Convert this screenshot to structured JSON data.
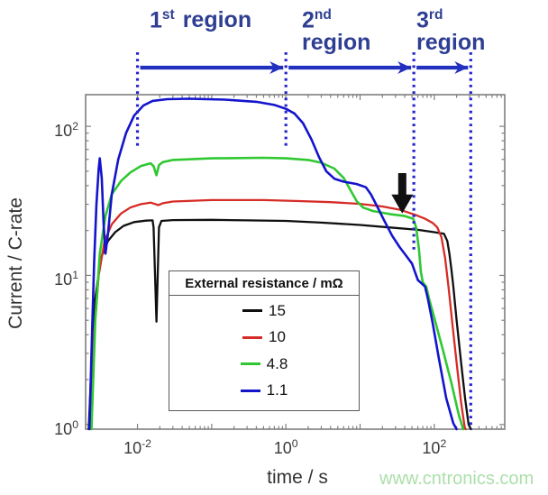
{
  "header": {
    "regions": [
      {
        "num": "1",
        "sup": "st",
        "word": "region"
      },
      {
        "num": "2",
        "sup": "nd",
        "word": "region"
      },
      {
        "num": "3",
        "sup": "rd",
        "word": "region"
      }
    ],
    "text_color": "#2e3e92",
    "arrow_color": "#2230c0"
  },
  "watermark": {
    "text": "www.cntronics.com",
    "color": "#abdfab"
  },
  "chart_data": {
    "type": "line",
    "x_scale": "log",
    "y_scale": "log",
    "title": "",
    "xlabel": "time / s",
    "ylabel": "Current / C-rate",
    "xlim": [
      0.002,
      890
    ],
    "ylim": [
      0.93,
      163
    ],
    "grid": false,
    "x_ticks": [
      {
        "base": "10",
        "exp": "-2",
        "value": 0.01
      },
      {
        "base": "10",
        "exp": "0",
        "value": 1
      },
      {
        "base": "10",
        "exp": "2",
        "value": 100
      }
    ],
    "y_ticks": [
      {
        "base": "10",
        "exp": "0",
        "value": 1
      },
      {
        "base": "10",
        "exp": "1",
        "value": 10
      },
      {
        "base": "10",
        "exp": "2",
        "value": 100
      }
    ],
    "legend": {
      "title": "External resistance / mΩ",
      "position": "inside lower-left",
      "entries": [
        {
          "label": "15",
          "color": "#0f0f0f"
        },
        {
          "label": "10",
          "color": "#d62b26"
        },
        {
          "label": "4.8",
          "color": "#2fc832"
        },
        {
          "label": "1.1",
          "color": "#1414cc"
        }
      ]
    },
    "regions": {
      "dotted_line_color": "#2525cd",
      "boundaries": [
        {
          "t": 0.01,
          "bottom_current": 74
        },
        {
          "t": 1.0,
          "bottom_current": 74
        },
        {
          "t": 53,
          "bottom_current": 14
        },
        {
          "t": 310,
          "bottom_current": 0.93
        }
      ]
    },
    "annotation_arrow": {
      "t": 37,
      "tip_current": 26,
      "color": "#111111"
    },
    "series": [
      {
        "name": "15",
        "color": "#0f0f0f",
        "width": 2.3,
        "points": [
          [
            0.0022,
            0.93
          ],
          [
            0.0024,
            2.5
          ],
          [
            0.0027,
            7
          ],
          [
            0.0032,
            13
          ],
          [
            0.004,
            17
          ],
          [
            0.005,
            19.5
          ],
          [
            0.0065,
            21.5
          ],
          [
            0.009,
            22.8
          ],
          [
            0.013,
            23.3
          ],
          [
            0.016,
            23.4
          ],
          [
            0.0165,
            21
          ],
          [
            0.018,
            4.9
          ],
          [
            0.0195,
            21
          ],
          [
            0.021,
            23.2
          ],
          [
            0.03,
            23.5
          ],
          [
            0.1,
            23.6
          ],
          [
            0.3,
            23.4
          ],
          [
            1,
            23.2
          ],
          [
            3,
            22.6
          ],
          [
            10,
            21.8
          ],
          [
            30,
            20.8
          ],
          [
            60,
            20.2
          ],
          [
            100,
            19.5
          ],
          [
            135,
            19
          ],
          [
            150,
            17
          ],
          [
            160,
            14
          ],
          [
            170,
            11
          ],
          [
            180,
            8.5
          ],
          [
            200,
            5
          ],
          [
            230,
            2.6
          ],
          [
            260,
            1.5
          ],
          [
            290,
            1.0
          ],
          [
            312,
            0.93
          ]
        ]
      },
      {
        "name": "10",
        "color": "#d62b26",
        "width": 2.3,
        "points": [
          [
            0.0023,
            0.93
          ],
          [
            0.0026,
            4
          ],
          [
            0.003,
            10
          ],
          [
            0.0036,
            17
          ],
          [
            0.0045,
            22
          ],
          [
            0.006,
            26
          ],
          [
            0.008,
            28.5
          ],
          [
            0.011,
            30
          ],
          [
            0.015,
            30.8
          ],
          [
            0.017,
            30.2
          ],
          [
            0.019,
            29.6
          ],
          [
            0.022,
            30.5
          ],
          [
            0.03,
            31.3
          ],
          [
            0.1,
            32
          ],
          [
            0.5,
            32
          ],
          [
            1.5,
            31.5
          ],
          [
            4,
            31
          ],
          [
            10,
            30.2
          ],
          [
            20,
            29
          ],
          [
            35,
            27.5
          ],
          [
            55,
            25.5
          ],
          [
            75,
            24
          ],
          [
            95,
            22.5
          ],
          [
            110,
            21
          ],
          [
            125,
            18
          ],
          [
            140,
            13
          ],
          [
            155,
            8.5
          ],
          [
            175,
            4.8
          ],
          [
            200,
            2.6
          ],
          [
            230,
            1.4
          ],
          [
            258,
            0.95
          ],
          [
            266,
            0.93
          ]
        ]
      },
      {
        "name": "4.8",
        "color": "#2fc832",
        "width": 2.6,
        "points": [
          [
            0.0024,
            0.93
          ],
          [
            0.0027,
            5
          ],
          [
            0.0031,
            14
          ],
          [
            0.0037,
            25
          ],
          [
            0.0045,
            35
          ],
          [
            0.006,
            43
          ],
          [
            0.008,
            49
          ],
          [
            0.011,
            54
          ],
          [
            0.015,
            56.5
          ],
          [
            0.0165,
            54
          ],
          [
            0.018,
            47
          ],
          [
            0.0195,
            55
          ],
          [
            0.022,
            57.5
          ],
          [
            0.03,
            59.5
          ],
          [
            0.1,
            61
          ],
          [
            0.5,
            61.5
          ],
          [
            1,
            61
          ],
          [
            2,
            59.5
          ],
          [
            3,
            57
          ],
          [
            4.5,
            52
          ],
          [
            6,
            45
          ],
          [
            7.5,
            37
          ],
          [
            9,
            31.5
          ],
          [
            11,
            28.5
          ],
          [
            15,
            27
          ],
          [
            25,
            25.8
          ],
          [
            40,
            25
          ],
          [
            52,
            24
          ],
          [
            57,
            21
          ],
          [
            62,
            15
          ],
          [
            66,
            10.5
          ],
          [
            70,
            9.0
          ],
          [
            78,
            8.4
          ],
          [
            85,
            7.0
          ],
          [
            100,
            5.2
          ],
          [
            130,
            3.2
          ],
          [
            170,
            1.9
          ],
          [
            215,
            1.15
          ],
          [
            245,
            0.93
          ]
        ]
      },
      {
        "name": "1.1",
        "color": "#1414cc",
        "width": 2.6,
        "points": [
          [
            0.00225,
            0.93
          ],
          [
            0.0024,
            3
          ],
          [
            0.0026,
            12
          ],
          [
            0.0028,
            30
          ],
          [
            0.003,
            52
          ],
          [
            0.0031,
            61
          ],
          [
            0.0033,
            45
          ],
          [
            0.0035,
            22
          ],
          [
            0.0037,
            14
          ],
          [
            0.004,
            19
          ],
          [
            0.0045,
            35
          ],
          [
            0.0055,
            60
          ],
          [
            0.007,
            90
          ],
          [
            0.009,
            118
          ],
          [
            0.012,
            138
          ],
          [
            0.016,
            148
          ],
          [
            0.025,
            152
          ],
          [
            0.05,
            153
          ],
          [
            0.15,
            151
          ],
          [
            0.4,
            146
          ],
          [
            0.7,
            139
          ],
          [
            1.0,
            131
          ],
          [
            1.3,
            122
          ],
          [
            1.7,
            105
          ],
          [
            2.2,
            82
          ],
          [
            2.8,
            62
          ],
          [
            3.5,
            50
          ],
          [
            4.5,
            44.5
          ],
          [
            6,
            42.5
          ],
          [
            9,
            41
          ],
          [
            12,
            39
          ],
          [
            14,
            35
          ],
          [
            17,
            29
          ],
          [
            21,
            23.5
          ],
          [
            27,
            18.5
          ],
          [
            34,
            15.5
          ],
          [
            42,
            13.5
          ],
          [
            50,
            12
          ],
          [
            55,
            10.5
          ],
          [
            60,
            9.3
          ],
          [
            68,
            8.8
          ],
          [
            75,
            8.4
          ],
          [
            82,
            7.0
          ],
          [
            95,
            4.8
          ],
          [
            115,
            2.8
          ],
          [
            145,
            1.5
          ],
          [
            180,
            1.02
          ],
          [
            200,
            0.93
          ]
        ]
      }
    ]
  }
}
